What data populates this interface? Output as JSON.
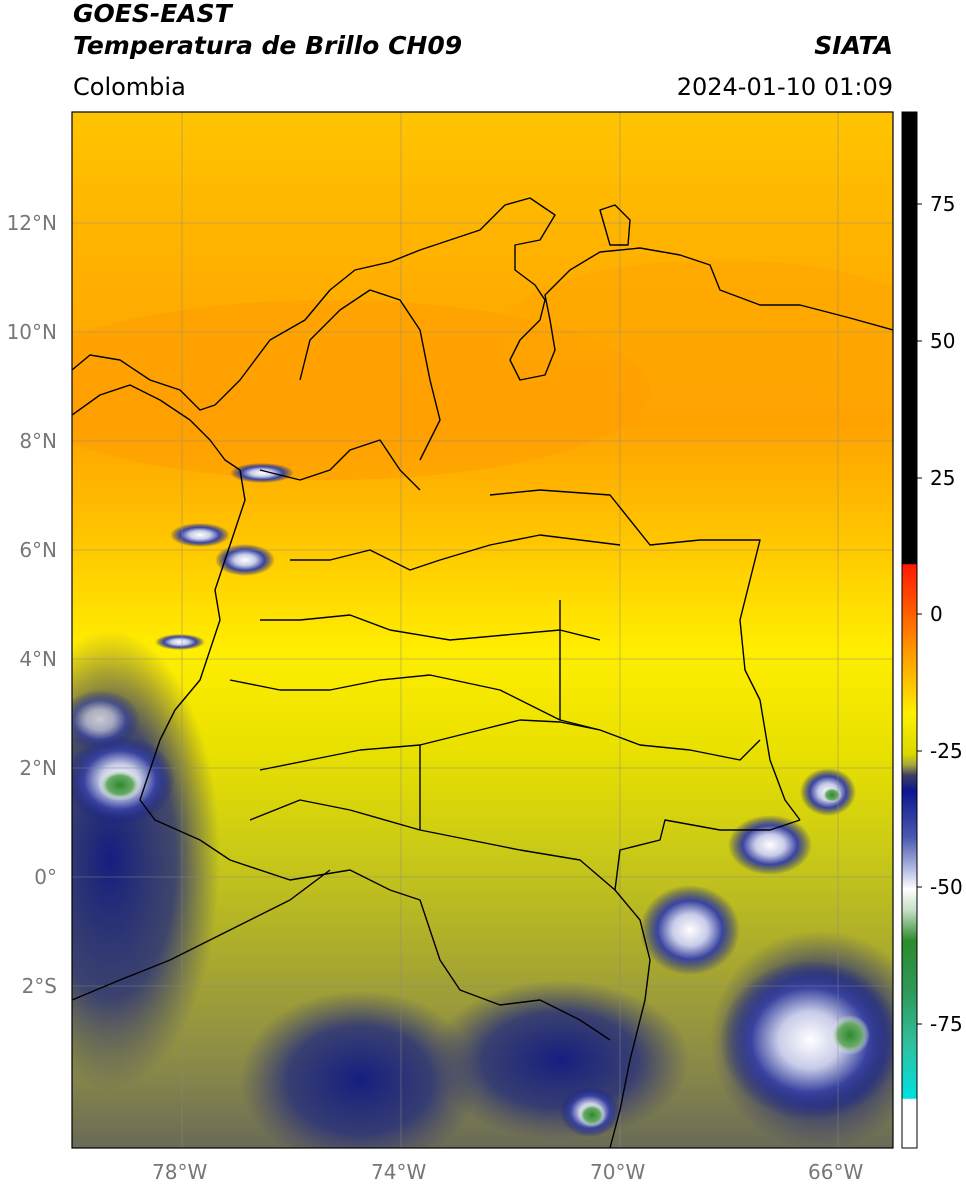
{
  "header": {
    "satellite": "GOES-EAST",
    "product": "Temperatura de Brillo CH09",
    "region": "Colombia",
    "agency": "SIATA",
    "datetime": "2024-01-10 01:09"
  },
  "map": {
    "lon_ticks": [
      "78°W",
      "74°W",
      "70°W",
      "66°W"
    ],
    "lat_ticks": [
      "12°N",
      "10°N",
      "8°N",
      "6°N",
      "4°N",
      "2°N",
      "0°",
      "2°S"
    ]
  },
  "colorbar": {
    "ticks": [
      "75",
      "50",
      "25",
      "0",
      "-25",
      "-50",
      "-75"
    ],
    "range": [
      -100,
      90
    ],
    "colors": {
      "hot": "#000000",
      "red": "#ff2a00",
      "orange": "#ffa000",
      "yellow": "#ffee00",
      "olive": "#a8a820",
      "navy": "#101a80",
      "white": "#ffffff",
      "green": "#2e8a2e",
      "cyan": "#00e0e0"
    }
  }
}
